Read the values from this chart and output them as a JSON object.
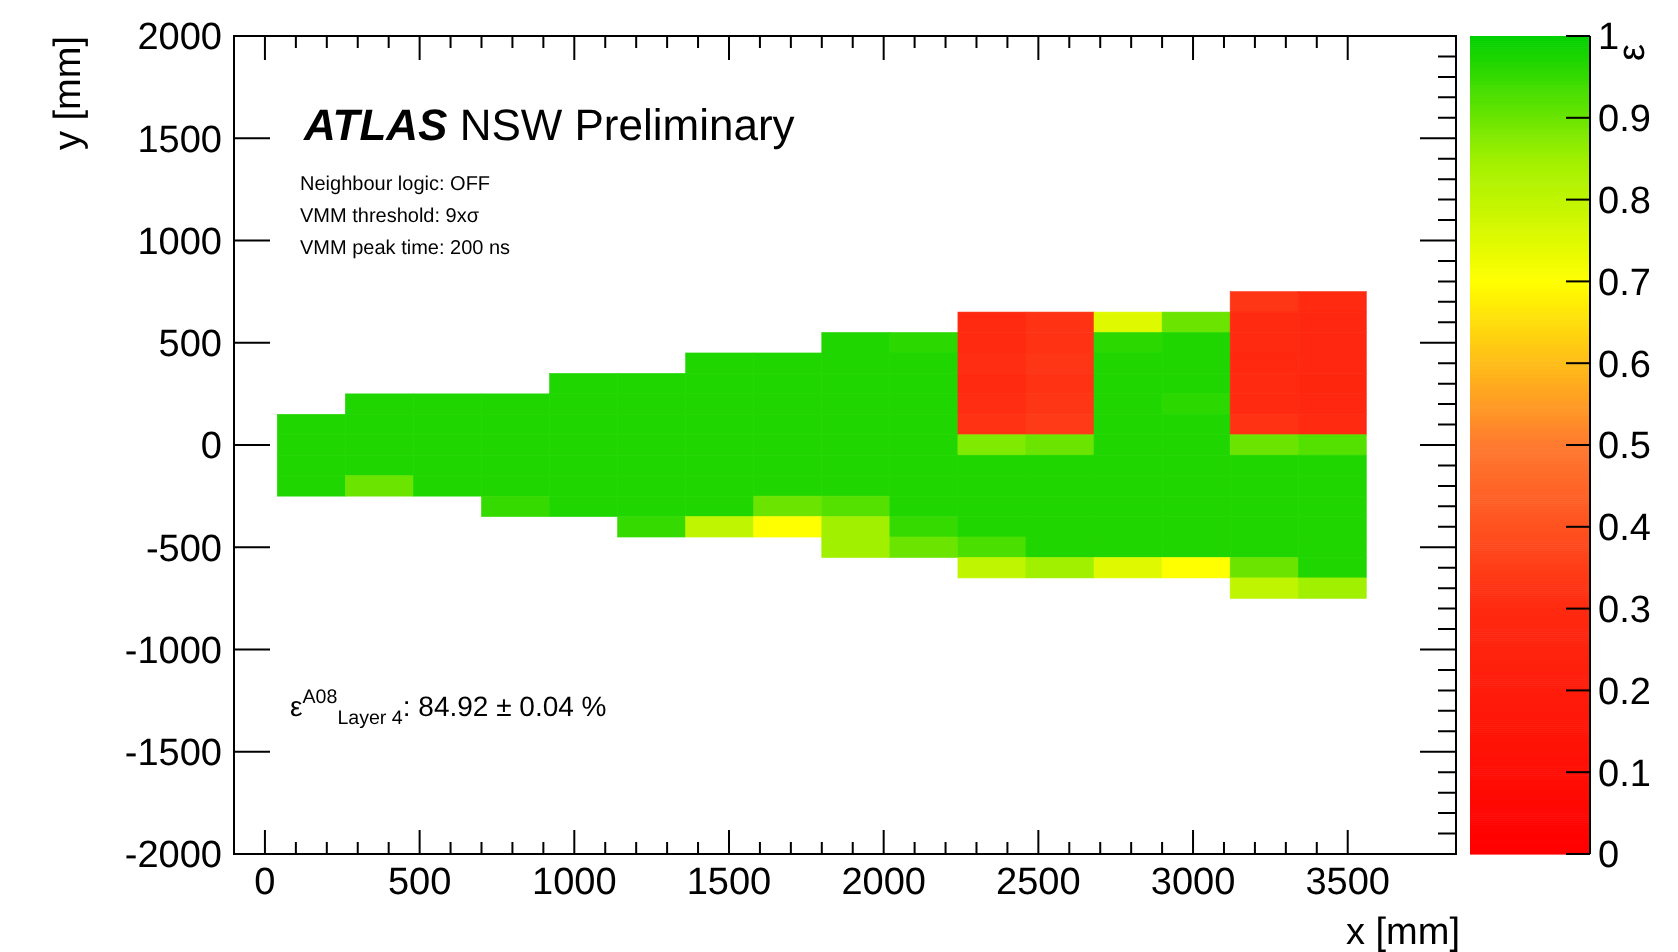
{
  "chart_data": {
    "type": "heatmap",
    "title": "ATLAS NSW Preliminary",
    "xlabel": "x [mm]",
    "ylabel": "y [mm]",
    "clabel": "ε",
    "annotations": [
      "Neighbour logic: OFF",
      "VMM threshold: 9xσ",
      "VMM peak time: 200 ns",
      "ε$^{A08}$$_{Layer 4}$: 84.92 ± 0.04 %"
    ],
    "x": [
      150,
      370,
      590,
      810,
      1030,
      1250,
      1470,
      1690,
      1910,
      2130,
      2350,
      2570,
      2790,
      3010,
      3230,
      3450
    ],
    "y": [
      700,
      600,
      500,
      400,
      300,
      200,
      100,
      0,
      -100,
      -200,
      -300,
      -400,
      -500,
      -600,
      -700
    ],
    "cells": [
      [
        null,
        null,
        null,
        null,
        null,
        null,
        null,
        null,
        null,
        null,
        null,
        null,
        null,
        null,
        0.33,
        0.3
      ],
      [
        null,
        null,
        null,
        null,
        null,
        null,
        null,
        null,
        null,
        null,
        0.3,
        0.32,
        0.75,
        0.9,
        0.3,
        0.28
      ],
      [
        null,
        null,
        null,
        null,
        null,
        null,
        null,
        null,
        0.97,
        0.96,
        0.3,
        0.32,
        0.96,
        0.97,
        0.3,
        0.28
      ],
      [
        null,
        null,
        null,
        null,
        null,
        null,
        0.97,
        0.97,
        0.97,
        0.97,
        0.31,
        0.33,
        0.97,
        0.97,
        0.29,
        0.28
      ],
      [
        null,
        null,
        null,
        null,
        0.97,
        0.97,
        0.97,
        0.97,
        0.97,
        0.97,
        0.3,
        0.32,
        0.97,
        0.97,
        0.3,
        0.27
      ],
      [
        null,
        0.97,
        0.97,
        0.97,
        0.97,
        0.97,
        0.97,
        0.97,
        0.97,
        0.97,
        0.31,
        0.33,
        0.97,
        0.96,
        0.3,
        0.28
      ],
      [
        0.97,
        0.97,
        0.97,
        0.97,
        0.97,
        0.97,
        0.97,
        0.97,
        0.97,
        0.97,
        0.32,
        0.34,
        0.97,
        0.97,
        0.32,
        0.3
      ],
      [
        0.97,
        0.97,
        0.97,
        0.97,
        0.97,
        0.97,
        0.97,
        0.97,
        0.97,
        0.97,
        0.88,
        0.9,
        0.97,
        0.97,
        0.9,
        0.92
      ],
      [
        0.97,
        0.97,
        0.97,
        0.97,
        0.97,
        0.97,
        0.97,
        0.97,
        0.97,
        0.97,
        0.97,
        0.97,
        0.97,
        0.97,
        0.97,
        0.97
      ],
      [
        0.97,
        0.9,
        0.97,
        0.97,
        0.97,
        0.97,
        0.97,
        0.97,
        0.97,
        0.97,
        0.97,
        0.97,
        0.97,
        0.97,
        0.97,
        0.97
      ],
      [
        null,
        null,
        null,
        0.95,
        0.97,
        0.97,
        0.97,
        0.9,
        0.92,
        0.97,
        0.97,
        0.97,
        0.97,
        0.97,
        0.97,
        0.97
      ],
      [
        null,
        null,
        null,
        null,
        null,
        0.95,
        0.8,
        0.7,
        0.85,
        0.95,
        0.97,
        0.97,
        0.97,
        0.97,
        0.97,
        0.97
      ],
      [
        null,
        null,
        null,
        null,
        null,
        null,
        null,
        null,
        0.85,
        0.9,
        0.93,
        0.97,
        0.97,
        0.97,
        0.97,
        0.97
      ],
      [
        null,
        null,
        null,
        null,
        null,
        null,
        null,
        null,
        null,
        null,
        0.8,
        0.85,
        0.75,
        0.7,
        0.9,
        0.97
      ],
      [
        null,
        null,
        null,
        null,
        null,
        null,
        null,
        null,
        null,
        null,
        null,
        null,
        null,
        null,
        0.8,
        0.85
      ]
    ],
    "xlim": [
      -100,
      3850
    ],
    "ylim": [
      -2000,
      2000
    ],
    "xticks": [
      0,
      500,
      1000,
      1500,
      2000,
      2500,
      3000,
      3500
    ],
    "yticks": [
      -2000,
      -1500,
      -1000,
      -500,
      0,
      500,
      1000,
      1500,
      2000
    ],
    "clim": [
      0,
      1
    ],
    "cticks": [
      0,
      0.1,
      0.2,
      0.3,
      0.4,
      0.5,
      0.6,
      0.7,
      0.8,
      0.9,
      1
    ]
  }
}
